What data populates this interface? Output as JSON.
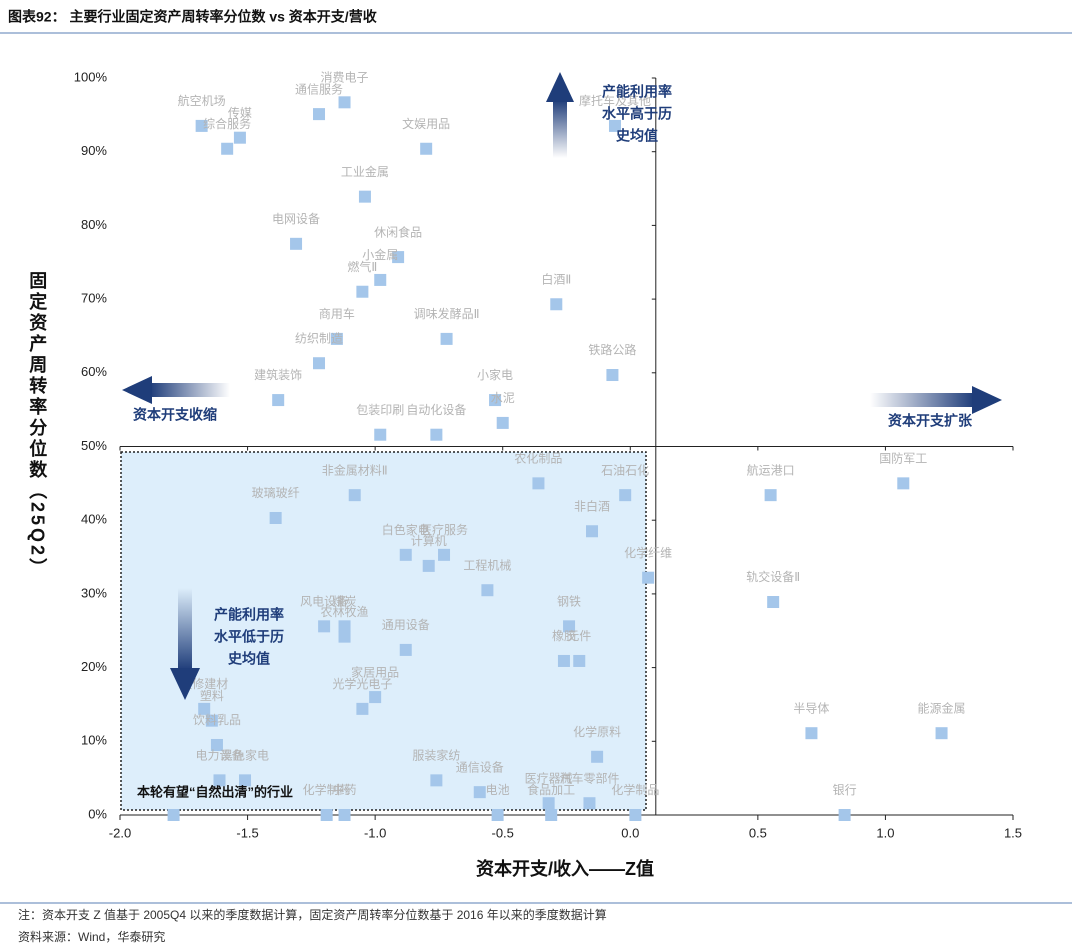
{
  "chart_data": {
    "type": "scatter",
    "title": "图表92：  主要行业固定资产周转率分位数 vs 资本开支/营收",
    "xlabel": "资本开支/收入——Z值",
    "ylabel": "固定资产周转率分位数（25Q2）",
    "xlim": [
      -2,
      1.5
    ],
    "xticks": [
      {
        "value": -2,
        "label": "-2.0"
      },
      {
        "value": -1.5,
        "label": "-1.5"
      },
      {
        "value": -1,
        "label": "-1.0"
      },
      {
        "value": -0.5,
        "label": "-0.5"
      },
      {
        "value": 0,
        "label": "0.0"
      },
      0.5,
      {
        "value": 1,
        "label": "1.0"
      },
      1.5
    ],
    "ylim": [
      0,
      100
    ],
    "yticks": [
      {
        "value": 0,
        "label": "0%"
      },
      {
        "value": 10,
        "label": "10%"
      },
      {
        "value": 20,
        "label": "20%"
      },
      {
        "value": 30,
        "label": "30%"
      },
      {
        "value": 40,
        "label": "40%"
      },
      {
        "value": 50,
        "label": "50%"
      },
      {
        "value": 60,
        "label": "60%"
      },
      {
        "value": 70,
        "label": "70%"
      },
      {
        "value": 80,
        "label": "80%"
      },
      {
        "value": 90,
        "label": "90%"
      },
      {
        "value": 100,
        "label": "100%"
      }
    ],
    "reference_lines": {
      "x": 0.1,
      "y": 50
    },
    "color": "#a4c6ea",
    "labels": [
      "航空机场",
      "传媒",
      "综合服务",
      "通信服务",
      "消费电子",
      "文娱用品",
      "摩托车及其他",
      "工业金属",
      "电网设备",
      "休闲食品",
      "小金属",
      "燃气Ⅱ",
      "白酒Ⅱ",
      "商用车",
      "纺织制造",
      "调味发酵品Ⅱ",
      "铁路公路",
      "建筑装饰",
      "小家电",
      "水泥",
      "包装印刷",
      "自动化设备",
      "非金属材料Ⅱ",
      "玻璃玻纤",
      "农化制品",
      "石油石化",
      "航运港口",
      "国防军工",
      "非白酒",
      "白色家电",
      "医疗服务",
      "计算机",
      "化学纤维",
      "工程机械",
      "轨交设备Ⅱ",
      "风电设备",
      "煤炭",
      "农林牧渔",
      "钢铁",
      "通用设备",
      "橡胶",
      "元件",
      "家居用品",
      "光学光电子",
      "半导体",
      "能源金属",
      "装修建材",
      "塑料",
      "饮料乳品",
      "电力设备",
      "黑色家电",
      "服装家纺",
      "通信设备",
      "医疗器械",
      "汽车零部件",
      "电池",
      "食品加工",
      "化学原料",
      "化学制品",
      "银行",
      null,
      "化学制药",
      "中药"
    ],
    "x": [
      -1.68,
      -1.53,
      -1.58,
      -1.22,
      -1.12,
      -0.8,
      -0.06,
      -1.04,
      -1.31,
      -0.91,
      -0.98,
      -1.05,
      -0.29,
      -1.15,
      -1.22,
      -0.72,
      -0.07,
      -1.38,
      -0.53,
      -0.5,
      -0.98,
      -0.76,
      -1.08,
      -1.39,
      -0.36,
      -0.02,
      0.55,
      1.07,
      -0.15,
      -0.88,
      -0.73,
      -0.79,
      0.07,
      -0.56,
      0.56,
      -1.2,
      -1.12,
      -1.12,
      -0.24,
      -0.88,
      -0.26,
      -0.2,
      -1.0,
      -1.05,
      0.71,
      1.22,
      -1.67,
      -1.64,
      -1.62,
      -1.61,
      -1.51,
      -0.76,
      -0.59,
      -0.32,
      -0.16,
      -0.52,
      -0.31,
      -0.13,
      0.02,
      0.84,
      -1.79,
      -1.19,
      -1.12
    ],
    "y": [
      93.5,
      91.9,
      90.4,
      95.1,
      96.7,
      90.4,
      93.5,
      83.9,
      77.5,
      75.7,
      72.6,
      71.0,
      69.3,
      64.6,
      61.3,
      64.6,
      59.7,
      56.3,
      56.3,
      53.2,
      51.6,
      51.6,
      43.4,
      40.3,
      45.0,
      43.4,
      43.4,
      45.0,
      38.5,
      35.3,
      35.3,
      33.8,
      32.2,
      30.5,
      28.9,
      25.6,
      25.6,
      24.2,
      25.6,
      22.4,
      20.9,
      20.9,
      16.0,
      14.4,
      11.1,
      11.1,
      14.4,
      12.8,
      9.5,
      4.7,
      4.7,
      4.7,
      3.1,
      1.6,
      1.6,
      0,
      0,
      7.9,
      0,
      0,
      0,
      0,
      0
    ]
  },
  "annotations": {
    "high_utilization": [
      "产能利用率",
      "水平高于历",
      "史均值"
    ],
    "low_utilization": [
      "产能利用率",
      "水平低于历",
      "史均值"
    ],
    "capex_shrink": "资本开支收缩",
    "capex_expand": "资本开支扩张",
    "clearing_box": "本轮有望“自然出清”的行业"
  },
  "footer": {
    "note": "注：资本开支 Z 值基于 2005Q4 以来的季度数据计算，固定资产周转率分位数基于 2016 年以来的季度数据计算",
    "source": "资料来源：Wind，华泰研究"
  }
}
